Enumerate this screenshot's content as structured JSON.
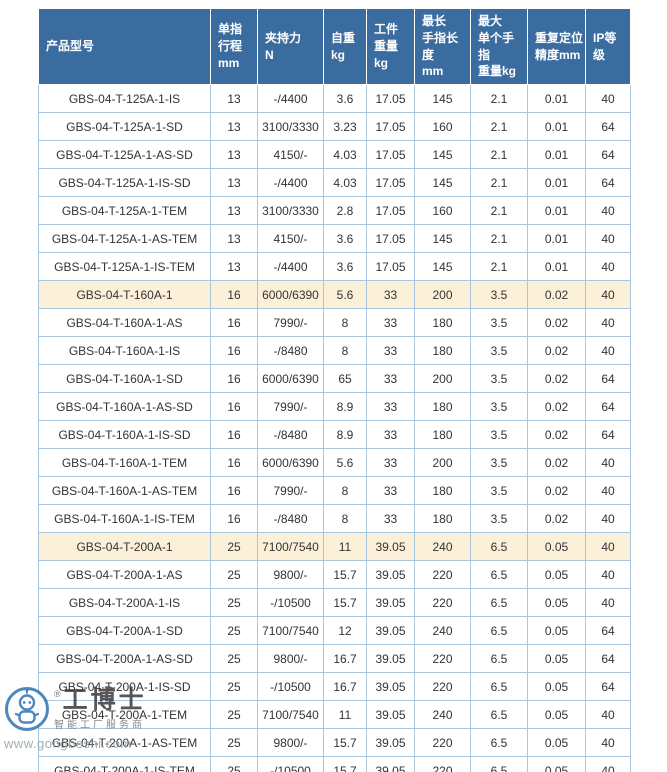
{
  "colors": {
    "header_bg": "#3b6ca0",
    "header_text": "#ffffff",
    "border": "#a9c6e0",
    "highlight_row_bg": "#fdf0d9",
    "body_text": "#333333",
    "watermark_blue": "#3577b5"
  },
  "table": {
    "headers": [
      {
        "lines": [
          "产品型号"
        ]
      },
      {
        "lines": [
          "单指",
          "行程",
          "mm"
        ]
      },
      {
        "lines": [
          "夹持力",
          "N"
        ]
      },
      {
        "lines": [
          "自重",
          "kg"
        ]
      },
      {
        "lines": [
          "工件",
          "重量",
          "kg"
        ]
      },
      {
        "lines": [
          "最长",
          "手指长度",
          "mm"
        ]
      },
      {
        "lines": [
          "最大",
          "单个手指",
          "重量kg"
        ]
      },
      {
        "lines": [
          "重复定位",
          "精度mm"
        ]
      },
      {
        "lines": [
          "IP等级"
        ]
      }
    ],
    "rows": [
      {
        "highlight": false,
        "cells": [
          "GBS-04-T-125A-1-IS",
          "13",
          "-/4400",
          "3.6",
          "17.05",
          "145",
          "2.1",
          "0.01",
          "40"
        ]
      },
      {
        "highlight": false,
        "cells": [
          "GBS-04-T-125A-1-SD",
          "13",
          "3100/3330",
          "3.23",
          "17.05",
          "160",
          "2.1",
          "0.01",
          "64"
        ]
      },
      {
        "highlight": false,
        "cells": [
          "GBS-04-T-125A-1-AS-SD",
          "13",
          "4150/-",
          "4.03",
          "17.05",
          "145",
          "2.1",
          "0.01",
          "64"
        ]
      },
      {
        "highlight": false,
        "cells": [
          "GBS-04-T-125A-1-IS-SD",
          "13",
          "-/4400",
          "4.03",
          "17.05",
          "145",
          "2.1",
          "0.01",
          "64"
        ]
      },
      {
        "highlight": false,
        "cells": [
          "GBS-04-T-125A-1-TEM",
          "13",
          "3100/3330",
          "2.8",
          "17.05",
          "160",
          "2.1",
          "0.01",
          "40"
        ]
      },
      {
        "highlight": false,
        "cells": [
          "GBS-04-T-125A-1-AS-TEM",
          "13",
          "4150/-",
          "3.6",
          "17.05",
          "145",
          "2.1",
          "0.01",
          "40"
        ]
      },
      {
        "highlight": false,
        "cells": [
          "GBS-04-T-125A-1-IS-TEM",
          "13",
          "-/4400",
          "3.6",
          "17.05",
          "145",
          "2.1",
          "0.01",
          "40"
        ]
      },
      {
        "highlight": true,
        "cells": [
          "GBS-04-T-160A-1",
          "16",
          "6000/6390",
          "5.6",
          "33",
          "200",
          "3.5",
          "0.02",
          "40"
        ]
      },
      {
        "highlight": false,
        "cells": [
          "GBS-04-T-160A-1-AS",
          "16",
          "7990/-",
          "8",
          "33",
          "180",
          "3.5",
          "0.02",
          "40"
        ]
      },
      {
        "highlight": false,
        "cells": [
          "GBS-04-T-160A-1-IS",
          "16",
          "-/8480",
          "8",
          "33",
          "180",
          "3.5",
          "0.02",
          "40"
        ]
      },
      {
        "highlight": false,
        "cells": [
          "GBS-04-T-160A-1-SD",
          "16",
          "6000/6390",
          "65",
          "33",
          "200",
          "3.5",
          "0.02",
          "64"
        ]
      },
      {
        "highlight": false,
        "cells": [
          "GBS-04-T-160A-1-AS-SD",
          "16",
          "7990/-",
          "8.9",
          "33",
          "180",
          "3.5",
          "0.02",
          "64"
        ]
      },
      {
        "highlight": false,
        "cells": [
          "GBS-04-T-160A-1-IS-SD",
          "16",
          "-/8480",
          "8.9",
          "33",
          "180",
          "3.5",
          "0.02",
          "64"
        ]
      },
      {
        "highlight": false,
        "cells": [
          "GBS-04-T-160A-1-TEM",
          "16",
          "6000/6390",
          "5.6",
          "33",
          "200",
          "3.5",
          "0.02",
          "40"
        ]
      },
      {
        "highlight": false,
        "cells": [
          "GBS-04-T-160A-1-AS-TEM",
          "16",
          "7990/-",
          "8",
          "33",
          "180",
          "3.5",
          "0.02",
          "40"
        ]
      },
      {
        "highlight": false,
        "cells": [
          "GBS-04-T-160A-1-IS-TEM",
          "16",
          "-/8480",
          "8",
          "33",
          "180",
          "3.5",
          "0.02",
          "40"
        ]
      },
      {
        "highlight": true,
        "cells": [
          "GBS-04-T-200A-1",
          "25",
          "7100/7540",
          "11",
          "39.05",
          "240",
          "6.5",
          "0.05",
          "40"
        ]
      },
      {
        "highlight": false,
        "cells": [
          "GBS-04-T-200A-1-AS",
          "25",
          "9800/-",
          "15.7",
          "39.05",
          "220",
          "6.5",
          "0.05",
          "40"
        ]
      },
      {
        "highlight": false,
        "cells": [
          "GBS-04-T-200A-1-IS",
          "25",
          "-/10500",
          "15.7",
          "39.05",
          "220",
          "6.5",
          "0.05",
          "40"
        ]
      },
      {
        "highlight": false,
        "cells": [
          "GBS-04-T-200A-1-SD",
          "25",
          "7100/7540",
          "12",
          "39.05",
          "240",
          "6.5",
          "0.05",
          "64"
        ]
      },
      {
        "highlight": false,
        "cells": [
          "GBS-04-T-200A-1-AS-SD",
          "25",
          "9800/-",
          "16.7",
          "39.05",
          "220",
          "6.5",
          "0.05",
          "64"
        ]
      },
      {
        "highlight": false,
        "cells": [
          "GBS-04-T-200A-1-IS-SD",
          "25",
          "-/10500",
          "16.7",
          "39.05",
          "220",
          "6.5",
          "0.05",
          "64"
        ]
      },
      {
        "highlight": false,
        "cells": [
          "GBS-04-T-200A-1-TEM",
          "25",
          "7100/7540",
          "11",
          "39.05",
          "240",
          "6.5",
          "0.05",
          "40"
        ]
      },
      {
        "highlight": false,
        "cells": [
          "GBS-04-T-200A-1-AS-TEM",
          "25",
          "9800/-",
          "15.7",
          "39.05",
          "220",
          "6.5",
          "0.05",
          "40"
        ]
      },
      {
        "highlight": false,
        "cells": [
          "GBS-04-T-200A-1-IS-TEM",
          "25",
          "-/10500",
          "15.7",
          "39.05",
          "220",
          "6.5",
          "0.05",
          "40"
        ]
      }
    ]
  },
  "watermark": {
    "reg_mark": "®",
    "brand": "工博士",
    "tagline": "智能工厂服务商",
    "url": "www.gongboshi.com",
    "logo_icon": "gongboshi-robot-logo-icon"
  }
}
